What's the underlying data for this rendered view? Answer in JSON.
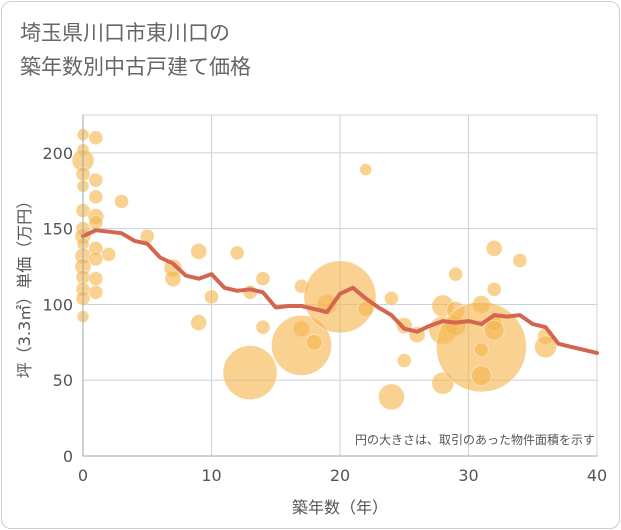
{
  "title": {
    "line1": "埼玉県川口市東川口の",
    "line2": "築年数別中古戸建て価格"
  },
  "chart_data": {
    "type": "scatter",
    "title": "埼玉県川口市東川口の築年数別中古戸建て価格",
    "xlabel": "築年数（年）",
    "ylabel": "坪（3.3㎡）単価（万円）",
    "xlim": [
      0,
      40
    ],
    "ylim": [
      0,
      225
    ],
    "xticks": [
      0,
      10,
      20,
      30,
      40
    ],
    "yticks": [
      0,
      50,
      100,
      150,
      200
    ],
    "grid": true,
    "note": "円の大きさは、取引のあった物件面積を示す",
    "colors": {
      "bubble": "#f5b54d",
      "trend": "#d4654f",
      "grid": "#c8d3dd",
      "axis": "#9aa8b3"
    },
    "points": [
      {
        "x": 0,
        "y": 212,
        "size": 6
      },
      {
        "x": 1,
        "y": 210,
        "size": 7
      },
      {
        "x": 0,
        "y": 202,
        "size": 6
      },
      {
        "x": 0,
        "y": 195,
        "size": 11
      },
      {
        "x": 0,
        "y": 186,
        "size": 7
      },
      {
        "x": 1,
        "y": 182,
        "size": 7
      },
      {
        "x": 0,
        "y": 178,
        "size": 6
      },
      {
        "x": 1,
        "y": 171,
        "size": 7
      },
      {
        "x": 3,
        "y": 168,
        "size": 7
      },
      {
        "x": 0,
        "y": 162,
        "size": 7
      },
      {
        "x": 1,
        "y": 158,
        "size": 8
      },
      {
        "x": 1,
        "y": 154,
        "size": 7
      },
      {
        "x": 0,
        "y": 150,
        "size": 7
      },
      {
        "x": 0,
        "y": 145,
        "size": 8
      },
      {
        "x": 5,
        "y": 145,
        "size": 7
      },
      {
        "x": 0,
        "y": 140,
        "size": 6
      },
      {
        "x": 1,
        "y": 137,
        "size": 7
      },
      {
        "x": 2,
        "y": 133,
        "size": 7
      },
      {
        "x": 0,
        "y": 132,
        "size": 8
      },
      {
        "x": 1,
        "y": 130,
        "size": 7
      },
      {
        "x": 9,
        "y": 135,
        "size": 8
      },
      {
        "x": 12,
        "y": 134,
        "size": 7
      },
      {
        "x": 0,
        "y": 125,
        "size": 8
      },
      {
        "x": 7,
        "y": 124,
        "size": 9
      },
      {
        "x": 0,
        "y": 118,
        "size": 7
      },
      {
        "x": 1,
        "y": 117,
        "size": 7
      },
      {
        "x": 7,
        "y": 117,
        "size": 8
      },
      {
        "x": 14,
        "y": 117,
        "size": 7
      },
      {
        "x": 0,
        "y": 110,
        "size": 7
      },
      {
        "x": 1,
        "y": 108,
        "size": 7
      },
      {
        "x": 0,
        "y": 104,
        "size": 7
      },
      {
        "x": 10,
        "y": 105,
        "size": 7
      },
      {
        "x": 13,
        "y": 108,
        "size": 7
      },
      {
        "x": 0,
        "y": 92,
        "size": 6
      },
      {
        "x": 9,
        "y": 88,
        "size": 8
      },
      {
        "x": 14,
        "y": 85,
        "size": 7
      },
      {
        "x": 13,
        "y": 55,
        "size": 27
      },
      {
        "x": 17,
        "y": 112,
        "size": 7
      },
      {
        "x": 17,
        "y": 84,
        "size": 8
      },
      {
        "x": 17,
        "y": 73,
        "size": 30
      },
      {
        "x": 18,
        "y": 75,
        "size": 8
      },
      {
        "x": 19,
        "y": 100,
        "size": 10
      },
      {
        "x": 20,
        "y": 105,
        "size": 36
      },
      {
        "x": 22,
        "y": 189,
        "size": 6
      },
      {
        "x": 22,
        "y": 97,
        "size": 8
      },
      {
        "x": 24,
        "y": 104,
        "size": 7
      },
      {
        "x": 25,
        "y": 86,
        "size": 8
      },
      {
        "x": 26,
        "y": 80,
        "size": 8
      },
      {
        "x": 24,
        "y": 39,
        "size": 13
      },
      {
        "x": 25,
        "y": 63,
        "size": 7
      },
      {
        "x": 28,
        "y": 99,
        "size": 11
      },
      {
        "x": 28,
        "y": 83,
        "size": 14
      },
      {
        "x": 28,
        "y": 48,
        "size": 11
      },
      {
        "x": 29,
        "y": 120,
        "size": 7
      },
      {
        "x": 29,
        "y": 96,
        "size": 9
      },
      {
        "x": 29,
        "y": 86,
        "size": 10
      },
      {
        "x": 31,
        "y": 100,
        "size": 9
      },
      {
        "x": 31,
        "y": 72,
        "size": 45
      },
      {
        "x": 31,
        "y": 70,
        "size": 7
      },
      {
        "x": 31,
        "y": 53,
        "size": 10
      },
      {
        "x": 32,
        "y": 137,
        "size": 8
      },
      {
        "x": 32,
        "y": 110,
        "size": 7
      },
      {
        "x": 32,
        "y": 88,
        "size": 8
      },
      {
        "x": 32,
        "y": 83,
        "size": 10
      },
      {
        "x": 34,
        "y": 129,
        "size": 7
      },
      {
        "x": 36,
        "y": 79,
        "size": 8
      },
      {
        "x": 36,
        "y": 72,
        "size": 11
      }
    ],
    "series": [
      {
        "type": "line",
        "x": [
          0,
          1,
          2,
          3,
          4,
          5,
          6,
          7,
          8,
          9,
          10,
          11,
          12,
          13,
          14,
          15,
          16,
          17,
          18,
          19,
          20,
          21,
          22,
          23,
          24,
          25,
          26,
          27,
          28,
          29,
          30,
          31,
          32,
          33,
          34,
          35,
          36,
          37,
          38,
          39,
          40
        ],
        "y": [
          145,
          149,
          148,
          147,
          142,
          140,
          131,
          127,
          119,
          117,
          120,
          111,
          109,
          110,
          108,
          98,
          99,
          99,
          97,
          95,
          107,
          111,
          104,
          98,
          93,
          84,
          82,
          86,
          89,
          88,
          89,
          87,
          93,
          92,
          93,
          87,
          85,
          74,
          72,
          70,
          68
        ]
      }
    ]
  }
}
